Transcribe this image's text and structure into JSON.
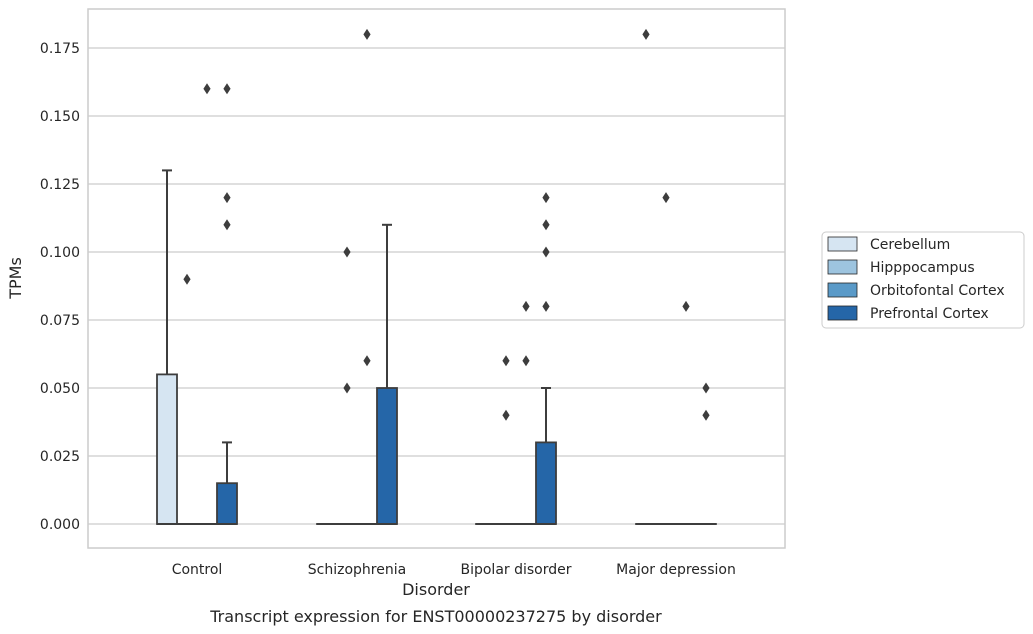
{
  "chart_data": {
    "type": "box",
    "title": "",
    "caption": "Transcript expression for ENST00000237275 by disorder",
    "xlabel": "Disorder",
    "ylabel": "TPMs",
    "ylim": [
      -0.009,
      0.189
    ],
    "yticks": [
      0.0,
      0.025,
      0.05,
      0.075,
      0.1,
      0.125,
      0.15,
      0.175
    ],
    "ytick_labels": [
      "0.000",
      "0.025",
      "0.050",
      "0.075",
      "0.100",
      "0.125",
      "0.150",
      "0.175"
    ],
    "grid": "horizontal",
    "legend_position": "right",
    "categories": [
      "Control",
      "Schizophrenia",
      "Bipolar disorder",
      "Major depression"
    ],
    "series": [
      {
        "name": "Cerebellum",
        "color": "#d6e5f2",
        "boxes": [
          {
            "q1": 0,
            "median": 0,
            "q3": 0.055,
            "whisker_low": 0,
            "whisker_high": 0.13,
            "outliers": []
          },
          {
            "q1": 0,
            "median": 0,
            "q3": 0,
            "whisker_low": 0,
            "whisker_high": 0,
            "outliers": []
          },
          {
            "q1": 0,
            "median": 0,
            "q3": 0,
            "whisker_low": 0,
            "whisker_high": 0,
            "outliers": []
          },
          {
            "q1": 0,
            "median": 0,
            "q3": 0,
            "whisker_low": 0,
            "whisker_high": 0,
            "outliers": [
              0.18
            ]
          }
        ]
      },
      {
        "name": "Hipppocampus",
        "color": "#9dc4df",
        "boxes": [
          {
            "q1": 0,
            "median": 0,
            "q3": 0,
            "whisker_low": 0,
            "whisker_high": 0,
            "outliers": [
              0.09
            ]
          },
          {
            "q1": 0,
            "median": 0,
            "q3": 0,
            "whisker_low": 0,
            "whisker_high": 0,
            "outliers": [
              0.1,
              0.05
            ]
          },
          {
            "q1": 0,
            "median": 0,
            "q3": 0,
            "whisker_low": 0,
            "whisker_high": 0,
            "outliers": [
              0.06,
              0.04
            ]
          },
          {
            "q1": 0,
            "median": 0,
            "q3": 0,
            "whisker_low": 0,
            "whisker_high": 0,
            "outliers": [
              0.12
            ]
          }
        ]
      },
      {
        "name": "Orbitofontal Cortex",
        "color": "#5a9ac8",
        "boxes": [
          {
            "q1": 0,
            "median": 0,
            "q3": 0,
            "whisker_low": 0,
            "whisker_high": 0,
            "outliers": [
              0.16
            ]
          },
          {
            "q1": 0,
            "median": 0,
            "q3": 0,
            "whisker_low": 0,
            "whisker_high": 0,
            "outliers": [
              0.18,
              0.06
            ]
          },
          {
            "q1": 0,
            "median": 0,
            "q3": 0,
            "whisker_low": 0,
            "whisker_high": 0,
            "outliers": [
              0.08,
              0.06
            ]
          },
          {
            "q1": 0,
            "median": 0,
            "q3": 0,
            "whisker_low": 0,
            "whisker_high": 0,
            "outliers": [
              0.08
            ]
          }
        ]
      },
      {
        "name": "Prefrontal Cortex",
        "color": "#2566a8",
        "boxes": [
          {
            "q1": 0,
            "median": 0,
            "q3": 0.015,
            "whisker_low": 0,
            "whisker_high": 0.03,
            "outliers": [
              0.16,
              0.12,
              0.11
            ]
          },
          {
            "q1": 0,
            "median": 0,
            "q3": 0.05,
            "whisker_low": 0,
            "whisker_high": 0.11,
            "outliers": []
          },
          {
            "q1": 0,
            "median": 0,
            "q3": 0.03,
            "whisker_low": 0,
            "whisker_high": 0.05,
            "outliers": [
              0.12,
              0.08
            ]
          },
          {
            "q1": 0,
            "median": 0,
            "q3": 0,
            "whisker_low": 0,
            "whisker_high": 0,
            "outliers": [
              0.05,
              0.04
            ]
          }
        ]
      }
    ],
    "bipolar_extra_outliers": {
      "Orbitofontal Cortex": [],
      "Prefrontal Cortex": [
        0.11,
        0.1
      ]
    },
    "legend": [
      "Cerebellum",
      "Hipppocampus",
      "Orbitofontal Cortex",
      "Prefrontal Cortex"
    ]
  }
}
